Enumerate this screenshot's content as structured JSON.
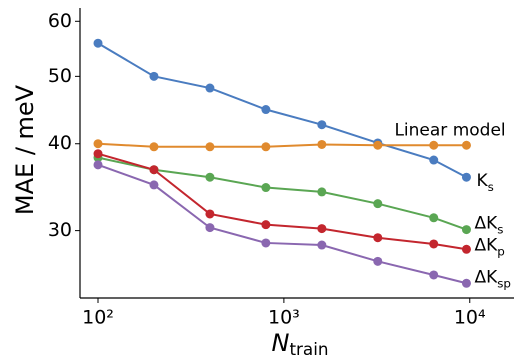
{
  "chart_data": {
    "type": "line",
    "x_label": "Ntrain",
    "y_label": "MAE / meV",
    "x": [
      100,
      200,
      400,
      800,
      1600,
      3200,
      6400,
      9600
    ],
    "xscale": "log",
    "yscale": "log",
    "xlim": [
      80,
      17300
    ],
    "ylim": [
      24,
      62.7
    ],
    "xticks": [
      {
        "value": 100,
        "label": "10²"
      },
      {
        "value": 1000,
        "label": "10³"
      },
      {
        "value": 10000,
        "label": "10⁴"
      }
    ],
    "yticks": [
      30,
      40,
      50,
      60
    ],
    "grid": false,
    "series": [
      {
        "name": "Ks",
        "color": "#4a7cc0",
        "values": [
          55.8,
          50.0,
          48.1,
          44.8,
          42.6,
          40.1,
          37.9,
          35.8
        ]
      },
      {
        "name": "Linear model",
        "color": "#e08a2e",
        "values": [
          40.0,
          39.6,
          39.6,
          39.6,
          39.9,
          39.8,
          39.8,
          39.8
        ]
      },
      {
        "name": "ΔKs",
        "color": "#5aa653",
        "values": [
          38.2,
          36.7,
          35.8,
          34.6,
          34.1,
          32.8,
          31.3,
          30.1
        ]
      },
      {
        "name": "ΔKp",
        "color": "#c3262e",
        "values": [
          38.7,
          36.7,
          31.7,
          30.6,
          30.2,
          29.3,
          28.7,
          28.2
        ]
      },
      {
        "name": "ΔKsp",
        "color": "#8a67b0",
        "values": [
          37.3,
          34.9,
          30.3,
          28.8,
          28.6,
          27.1,
          25.9,
          25.2
        ]
      }
    ]
  }
}
